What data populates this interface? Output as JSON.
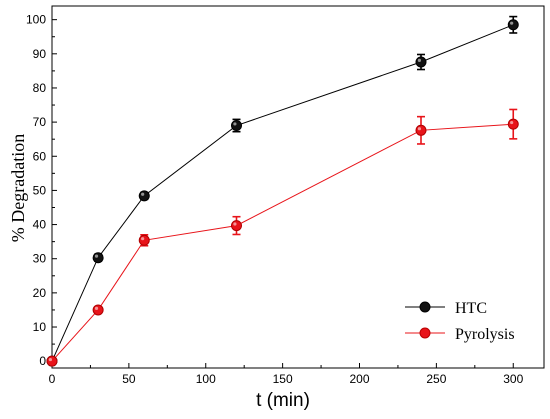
{
  "chart_data": {
    "type": "line",
    "xlabel": "t (min)",
    "ylabel": "% Degradation",
    "xlim": [
      0,
      320
    ],
    "ylim": [
      -2,
      104
    ],
    "xticks": [
      0,
      50,
      100,
      150,
      200,
      250,
      300
    ],
    "yticks": [
      0,
      10,
      20,
      30,
      40,
      50,
      60,
      70,
      80,
      90,
      100
    ],
    "grid": false,
    "legend_position": "bottom-right",
    "x": [
      0,
      30,
      60,
      120,
      240,
      300
    ],
    "series": [
      {
        "name": "HTC",
        "color": "#000000",
        "marker_color": "#111111",
        "values": [
          0,
          30.3,
          48.4,
          69.0,
          87.6,
          98.5
        ],
        "errors": [
          0,
          1.0,
          1.0,
          1.8,
          2.2,
          2.4
        ]
      },
      {
        "name": "Pyrolysis",
        "color": "#e8141a",
        "marker_color": "#e8141a",
        "values": [
          0,
          15.0,
          35.4,
          39.7,
          67.6,
          69.4
        ],
        "errors": [
          0,
          0.8,
          1.6,
          2.6,
          4.0,
          4.3
        ]
      }
    ]
  }
}
